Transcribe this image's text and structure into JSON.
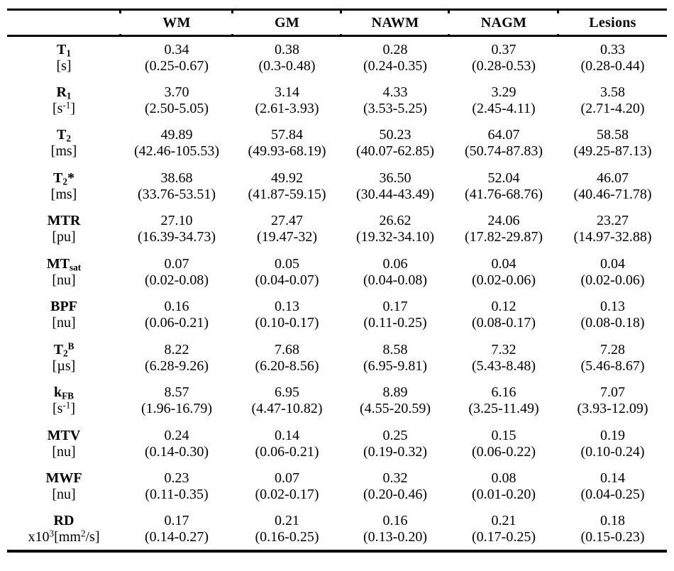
{
  "page": {
    "background_color": "#ffffff",
    "text_color": "#000000",
    "rule_color": "#000000"
  },
  "table": {
    "corner_label": "",
    "columns": [
      {
        "label": "WM"
      },
      {
        "label": "GM"
      },
      {
        "label": "NAWM"
      },
      {
        "label": "NAGM"
      },
      {
        "label": "Lesions"
      }
    ],
    "rows": [
      {
        "label_runs": [
          {
            "t": "T"
          },
          {
            "t": "1",
            "style": "sub"
          }
        ],
        "unit_runs": [
          {
            "t": "[s]"
          }
        ],
        "cells": [
          {
            "value": "0.34",
            "range": "(0.25-0.67)"
          },
          {
            "value": "0.38",
            "range": "(0.3-0.48)"
          },
          {
            "value": "0.28",
            "range": "(0.24-0.35)"
          },
          {
            "value": "0.37",
            "range": "(0.28-0.53)"
          },
          {
            "value": "0.33",
            "range": "(0.28-0.44)"
          }
        ]
      },
      {
        "label_runs": [
          {
            "t": "R"
          },
          {
            "t": "1",
            "style": "sub"
          }
        ],
        "unit_runs": [
          {
            "t": "[s"
          },
          {
            "t": "-1",
            "style": "sup"
          },
          {
            "t": "]"
          }
        ],
        "cells": [
          {
            "value": "3.70",
            "range": "(2.50-5.05)"
          },
          {
            "value": "3.14",
            "range": "(2.61-3.93)"
          },
          {
            "value": "4.33",
            "range": "(3.53-5.25)"
          },
          {
            "value": "3.29",
            "range": "(2.45-4.11)"
          },
          {
            "value": "3.58",
            "range": "(2.71-4.20)"
          }
        ]
      },
      {
        "label_runs": [
          {
            "t": "T"
          },
          {
            "t": "2",
            "style": "sub"
          }
        ],
        "unit_runs": [
          {
            "t": "[ms]"
          }
        ],
        "cells": [
          {
            "value": "49.89",
            "range": "(42.46-105.53)"
          },
          {
            "value": "57.84",
            "range": "(49.93-68.19)"
          },
          {
            "value": "50.23",
            "range": "(40.07-62.85)"
          },
          {
            "value": "64.07",
            "range": "(50.74-87.83)"
          },
          {
            "value": "58.58",
            "range": "(49.25-87.13)"
          }
        ]
      },
      {
        "label_runs": [
          {
            "t": "T"
          },
          {
            "t": "2",
            "style": "sub"
          },
          {
            "t": "*"
          }
        ],
        "unit_runs": [
          {
            "t": "[ms]"
          }
        ],
        "cells": [
          {
            "value": "38.68",
            "range": "(33.76-53.51)"
          },
          {
            "value": "49.92",
            "range": "(41.87-59.15)"
          },
          {
            "value": "36.50",
            "range": "(30.44-43.49)"
          },
          {
            "value": "52.04",
            "range": "(41.76-68.76)"
          },
          {
            "value": "46.07",
            "range": "(40.46-71.78)"
          }
        ]
      },
      {
        "label_runs": [
          {
            "t": "MTR"
          }
        ],
        "unit_runs": [
          {
            "t": "[pu]"
          }
        ],
        "cells": [
          {
            "value": "27.10",
            "range": "(16.39-34.73)"
          },
          {
            "value": "27.47",
            "range": "(19.47-32)"
          },
          {
            "value": "26.62",
            "range": "(19.32-34.10)"
          },
          {
            "value": "24.06",
            "range": "(17.82-29.87)"
          },
          {
            "value": "23.27",
            "range": "(14.97-32.88)"
          }
        ]
      },
      {
        "label_runs": [
          {
            "t": "MT"
          },
          {
            "t": "sat",
            "style": "sub"
          }
        ],
        "unit_runs": [
          {
            "t": "[nu]"
          }
        ],
        "cells": [
          {
            "value": "0.07",
            "range": "(0.02-0.08)"
          },
          {
            "value": "0.05",
            "range": "(0.04-0.07)"
          },
          {
            "value": "0.06",
            "range": "(0.04-0.08)"
          },
          {
            "value": "0.04",
            "range": "(0.02-0.06)"
          },
          {
            "value": "0.04",
            "range": "(0.02-0.06)"
          }
        ]
      },
      {
        "label_runs": [
          {
            "t": "BPF"
          }
        ],
        "unit_runs": [
          {
            "t": "[nu]"
          }
        ],
        "cells": [
          {
            "value": "0.16",
            "range": "(0.06-0.21)"
          },
          {
            "value": "0.13",
            "range": "(0.10-0.17)"
          },
          {
            "value": "0.17",
            "range": "(0.11-0.25)"
          },
          {
            "value": "0.12",
            "range": "(0.08-0.17)"
          },
          {
            "value": "0.13",
            "range": "(0.08-0.18)"
          }
        ]
      },
      {
        "label_runs": [
          {
            "t": "T"
          },
          {
            "t": "2",
            "style": "sub"
          },
          {
            "t": "B",
            "style": "sup"
          }
        ],
        "unit_runs": [
          {
            "t": "[µs]"
          }
        ],
        "cells": [
          {
            "value": "8.22",
            "range": "(6.28-9.26)"
          },
          {
            "value": "7.68",
            "range": "(6.20-8.56)"
          },
          {
            "value": "8.58",
            "range": "(6.95-9.81)"
          },
          {
            "value": "7.32",
            "range": "(5.43-8.48)"
          },
          {
            "value": "7.28",
            "range": "(5.46-8.67)"
          }
        ]
      },
      {
        "label_runs": [
          {
            "t": "k"
          },
          {
            "t": "FB",
            "style": "sub"
          }
        ],
        "unit_runs": [
          {
            "t": "[s"
          },
          {
            "t": "-1",
            "style": "sup"
          },
          {
            "t": "]"
          }
        ],
        "cells": [
          {
            "value": "8.57",
            "range": "(1.96-16.79)"
          },
          {
            "value": "6.95",
            "range": "(4.47-10.82)"
          },
          {
            "value": "8.89",
            "range": "(4.55-20.59)"
          },
          {
            "value": "6.16",
            "range": "(3.25-11.49)"
          },
          {
            "value": "7.07",
            "range": "(3.93-12.09)"
          }
        ]
      },
      {
        "label_runs": [
          {
            "t": "MTV"
          }
        ],
        "unit_runs": [
          {
            "t": "[nu]"
          }
        ],
        "cells": [
          {
            "value": "0.24",
            "range": "(0.14-0.30)"
          },
          {
            "value": "0.14",
            "range": "(0.06-0.21)"
          },
          {
            "value": "0.25",
            "range": "(0.19-0.32)"
          },
          {
            "value": "0.15",
            "range": "(0.06-0.22)"
          },
          {
            "value": "0.19",
            "range": "(0.10-0.24)"
          }
        ]
      },
      {
        "label_runs": [
          {
            "t": "MWF"
          }
        ],
        "unit_runs": [
          {
            "t": "[nu]"
          }
        ],
        "cells": [
          {
            "value": "0.23",
            "range": "(0.11-0.35)"
          },
          {
            "value": "0.07",
            "range": "(0.02-0.17)"
          },
          {
            "value": "0.32",
            "range": "(0.20-0.46)"
          },
          {
            "value": "0.08",
            "range": "(0.01-0.20)"
          },
          {
            "value": "0.14",
            "range": "(0.04-0.25)"
          }
        ]
      },
      {
        "label_runs": [
          {
            "t": "RD"
          }
        ],
        "unit_runs": [
          {
            "t": "x10"
          },
          {
            "t": "3",
            "style": "sup"
          },
          {
            "t": "[mm"
          },
          {
            "t": "2",
            "style": "sup"
          },
          {
            "t": "/s]"
          }
        ],
        "cells": [
          {
            "value": "0.17",
            "range": "(0.14-0.27)"
          },
          {
            "value": "0.21",
            "range": "(0.16-0.25)"
          },
          {
            "value": "0.16",
            "range": "(0.13-0.20)"
          },
          {
            "value": "0.21",
            "range": "(0.17-0.25)"
          },
          {
            "value": "0.18",
            "range": "(0.15-0.23)"
          }
        ]
      }
    ]
  }
}
